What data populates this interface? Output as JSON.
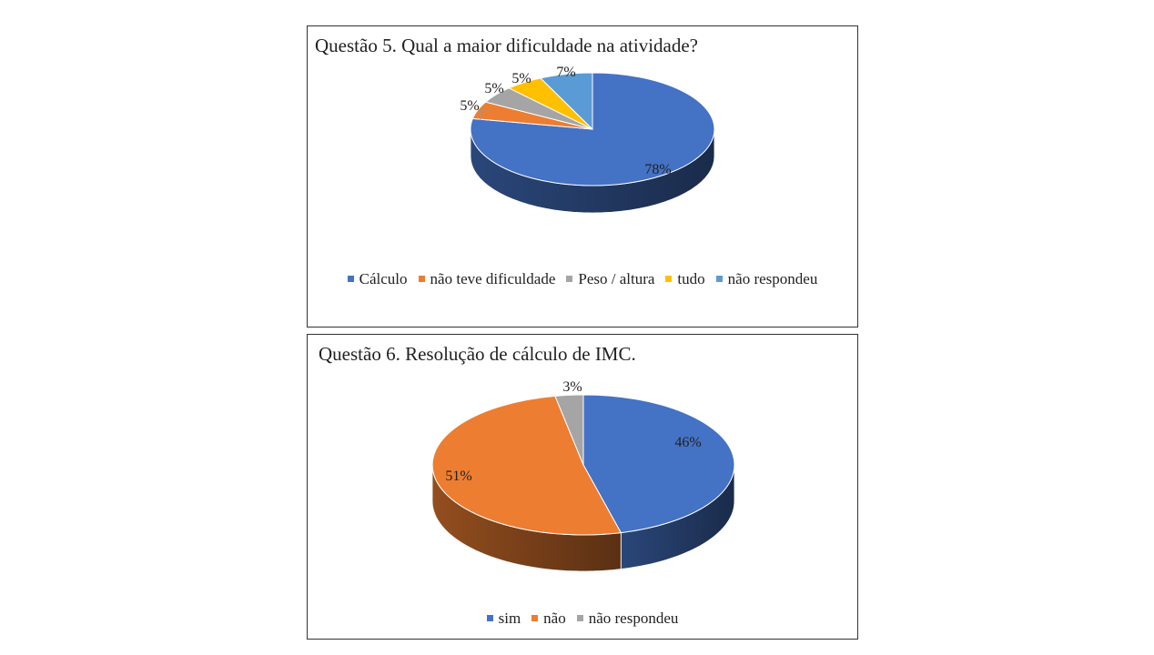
{
  "charts": [
    {
      "title": "Questão 5. Qual a maior dificuldade na atividade?",
      "chart_data": {
        "type": "pie",
        "title": "Questão 5. Qual a maior dificuldade na atividade?",
        "categories": [
          "Cálculo",
          "não teve dificuldade",
          "Peso / altura",
          "tudo",
          "não respondeu"
        ],
        "values": [
          78,
          5,
          5,
          5,
          7
        ],
        "labels": [
          "78%",
          "5%",
          "5%",
          "5%",
          "7%"
        ],
        "colors": [
          "#4472C4",
          "#ED7D31",
          "#A5A5A5",
          "#FFC000",
          "#5B9BD5"
        ],
        "legend": "bottom"
      }
    },
    {
      "title": "Questão 6.  Resolução de cálculo de IMC.",
      "chart_data": {
        "type": "pie",
        "title": "Questão 6.  Resolução de cálculo de IMC.",
        "categories": [
          "sim",
          "não",
          "não respondeu"
        ],
        "values": [
          46,
          51,
          3
        ],
        "labels": [
          "46%",
          "51%",
          "3%"
        ],
        "colors": [
          "#4472C4",
          "#ED7D31",
          "#A5A5A5"
        ],
        "legend": "bottom"
      }
    }
  ]
}
